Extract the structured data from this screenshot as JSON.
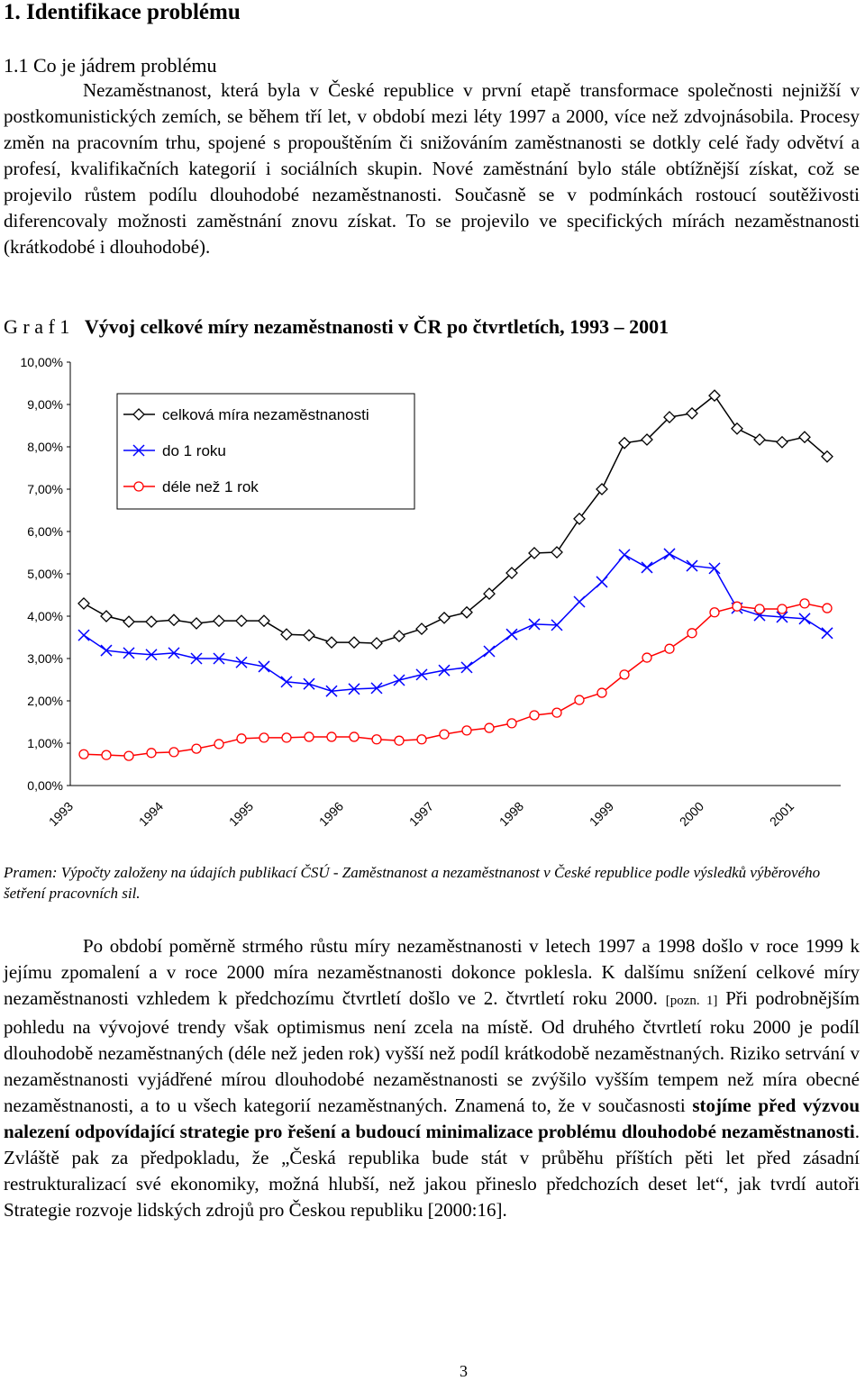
{
  "header": {
    "title": "1. Identifikace problému",
    "subtitle": "1.1 Co je jádrem problému"
  },
  "paragraph1": "Nezaměstnanost, která byla v České republice v první etapě transformace společnosti nejnižší v postkomunistických zemích, se během tří let, v období mezi léty 1997 a 2000, více než zdvojnásobila. Procesy změn na pracovním trhu, spojené s propouštěním či snižováním zaměstnanosti se dotkly celé řady odvětví a profesí, kvalifikačních kategorií i sociálních skupin. Nové zaměstnání bylo stále obtížnější získat, což se projevilo růstem podílu dlouhodobé nezaměstnanosti. Současně se v podmínkách rostoucí soutěživosti diferencovaly možnosti zaměstnání znovu získat. To se projevilo ve specifických mírách nezaměstnanosti (krátkodobé i dlouhodobé).",
  "figure": {
    "label": "G r a f 1",
    "source": "Pramen: Výpočty založeny na údajích publikací ČSÚ - Zaměstnanost a nezaměstnanost v České republice podle výsledků výběrového šetření pracovních sil."
  },
  "chart_data": {
    "type": "line",
    "title": "Vývoj celkové míry nezaměstnanosti v ČR po čtvrtletích, 1993 – 2001",
    "categories": [
      "1993",
      null,
      null,
      null,
      "1994",
      null,
      null,
      null,
      "1995",
      null,
      null,
      null,
      "1996",
      null,
      null,
      null,
      "1997",
      null,
      null,
      null,
      "1998",
      null,
      null,
      null,
      "1999",
      null,
      null,
      null,
      "2000",
      null,
      null,
      null,
      "2001",
      null
    ],
    "ylim": [
      0,
      10
    ],
    "yticks": [
      {
        "value": 0,
        "label": "0,00%"
      },
      {
        "value": 1,
        "label": "1,00%"
      },
      {
        "value": 2,
        "label": "2,00%"
      },
      {
        "value": 3,
        "label": "3,00%"
      },
      {
        "value": 4,
        "label": "4,00%"
      },
      {
        "value": 5,
        "label": "5,00%"
      },
      {
        "value": 6,
        "label": "6,00%"
      },
      {
        "value": 7,
        "label": "7,00%"
      },
      {
        "value": 8,
        "label": "8,00%"
      },
      {
        "value": 9,
        "label": "9,00%"
      },
      {
        "value": 10,
        "label": "10,00%"
      }
    ],
    "grid": false,
    "legend": "upper left",
    "series": [
      {
        "name": "celková míra nezaměstnanosti",
        "color": "#000000",
        "marker": "diamond",
        "values": [
          4.3,
          4.0,
          3.87,
          3.87,
          3.91,
          3.83,
          3.89,
          3.89,
          3.89,
          3.57,
          3.55,
          3.38,
          3.38,
          3.36,
          3.53,
          3.7,
          3.96,
          4.09,
          4.53,
          5.02,
          5.49,
          5.51,
          6.3,
          7.0,
          8.09,
          8.17,
          8.7,
          8.79,
          9.21,
          8.43,
          8.17,
          8.11,
          8.23,
          7.77
        ]
      },
      {
        "name": "do 1 roku",
        "color": "#0000ff",
        "marker": "x",
        "values": [
          3.55,
          3.19,
          3.13,
          3.09,
          3.13,
          3.0,
          3.0,
          2.91,
          2.81,
          2.45,
          2.4,
          2.23,
          2.28,
          2.3,
          2.49,
          2.62,
          2.72,
          2.79,
          3.17,
          3.57,
          3.81,
          3.79,
          4.34,
          4.81,
          5.45,
          5.15,
          5.47,
          5.19,
          5.13,
          4.19,
          4.02,
          3.98,
          3.94,
          3.6
        ]
      },
      {
        "name": "déle než 1 rok",
        "color": "#ff0000",
        "marker": "circle",
        "values": [
          0.74,
          0.72,
          0.7,
          0.77,
          0.79,
          0.87,
          0.98,
          1.11,
          1.13,
          1.13,
          1.15,
          1.15,
          1.15,
          1.09,
          1.06,
          1.09,
          1.21,
          1.3,
          1.36,
          1.47,
          1.66,
          1.72,
          2.02,
          2.19,
          2.62,
          3.02,
          3.23,
          3.6,
          4.09,
          4.23,
          4.17,
          4.17,
          4.3,
          4.19
        ]
      }
    ]
  },
  "paragraph2": [
    {
      "text": "Po období poměrně strmého růstu míry nezaměstnanosti v letech 1997 a 1998 došlo v roce 1999 k jejímu zpomalení a v roce 2000 míra nezaměstnanosti dokonce poklesla. K dalšímu snížení celkové míry nezaměstnanosti vzhledem k předchozímu čtvrtletí došlo ve 2. čtvrtletí roku 2000. ",
      "style": "normal"
    },
    {
      "text": "[pozn. 1]",
      "style": "small"
    },
    {
      "text": " Při podrobnějším pohledu na vývojové trendy však optimismus není zcela na místě. Od druhého čtvrtletí roku 2000 je podíl dlouhodobě nezaměstnaných (déle než jeden rok) vyšší než podíl krátkodobě nezaměstnaných. Riziko setrvání v nezaměstnanosti vyjádřené mírou dlouhodobé nezaměstnanosti se zvýšilo vyšším tempem než míra obecné nezaměstnanosti, a to u všech kategorií nezaměstnaných. Znamená to, že v současnosti ",
      "style": "normal"
    },
    {
      "text": "stojíme před výzvou nalezení odpovídající strategie pro řešení a budoucí minimalizace problému dlouhodobé nezaměstnanosti",
      "style": "bold"
    },
    {
      "text": ". Zvláště pak za předpokladu, že „Česká republika bude stát v průběhu příštích pěti let před zásadní restrukturalizací své ekonomiky, možná hlubší, než jakou přineslo předchozích deset let“, jak tvrdí autoři Strategie rozvoje lidských zdrojů pro Českou republiku [2000:16].",
      "style": "normal"
    }
  ],
  "footer": {
    "page_number": "3"
  }
}
